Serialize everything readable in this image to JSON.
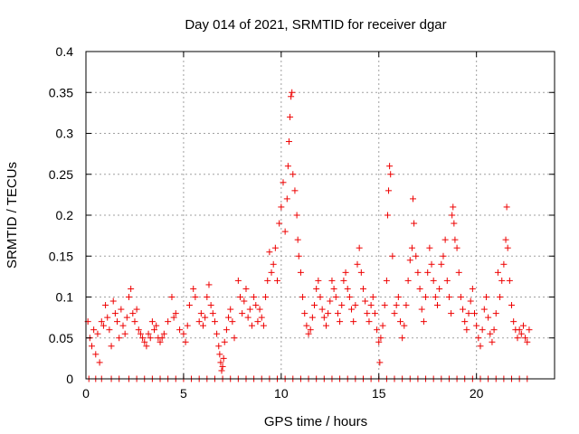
{
  "chart_data": {
    "type": "scatter",
    "title": "Day 014 of 2021, SRMTID for receiver dgar",
    "xlabel": "GPS time / hours",
    "ylabel": "SRMTID / TECUs",
    "xlim": [
      0,
      24
    ],
    "ylim": [
      0,
      0.4
    ],
    "x_ticks": [
      0,
      5,
      10,
      15,
      20
    ],
    "x_tick_labels": [
      "0",
      "5",
      "10",
      "15",
      "20"
    ],
    "y_ticks": [
      0,
      0.05,
      0.1,
      0.15,
      0.2,
      0.25,
      0.3,
      0.35,
      0.4
    ],
    "y_tick_labels": [
      "0",
      "0.05",
      "0.1",
      "0.15",
      "0.2",
      "0.25",
      "0.3",
      "0.35",
      "0.4"
    ],
    "grid": true,
    "marker": "+",
    "color": "#ee0000",
    "series": [
      {
        "name": "SRMTID",
        "points": [
          [
            0.1,
            0.07
          ],
          [
            0.2,
            0.05
          ],
          [
            0.3,
            0.04
          ],
          [
            0.4,
            0.06
          ],
          [
            0.5,
            0.03
          ],
          [
            0.6,
            0.055
          ],
          [
            0.7,
            0.02
          ],
          [
            0.8,
            0.07
          ],
          [
            0.9,
            0.065
          ],
          [
            1.0,
            0.09
          ],
          [
            1.1,
            0.075
          ],
          [
            1.2,
            0.06
          ],
          [
            1.3,
            0.04
          ],
          [
            1.4,
            0.095
          ],
          [
            1.5,
            0.08
          ],
          [
            1.6,
            0.07
          ],
          [
            1.7,
            0.05
          ],
          [
            1.8,
            0.085
          ],
          [
            1.9,
            0.065
          ],
          [
            2.0,
            0.055
          ],
          [
            2.1,
            0.075
          ],
          [
            2.2,
            0.1
          ],
          [
            2.3,
            0.11
          ],
          [
            2.4,
            0.08
          ],
          [
            2.5,
            0.07
          ],
          [
            2.6,
            0.085
          ],
          [
            2.7,
            0.06
          ],
          [
            2.8,
            0.055
          ],
          [
            2.9,
            0.05
          ],
          [
            3.0,
            0.045
          ],
          [
            3.1,
            0.04
          ],
          [
            3.2,
            0.055
          ],
          [
            3.3,
            0.05
          ],
          [
            3.4,
            0.07
          ],
          [
            3.5,
            0.06
          ],
          [
            3.6,
            0.065
          ],
          [
            3.7,
            0.05
          ],
          [
            3.8,
            0.045
          ],
          [
            3.9,
            0.05
          ],
          [
            4.0,
            0.055
          ],
          [
            4.2,
            0.07
          ],
          [
            4.4,
            0.1
          ],
          [
            4.5,
            0.075
          ],
          [
            4.6,
            0.08
          ],
          [
            4.8,
            0.06
          ],
          [
            5.0,
            0.055
          ],
          [
            5.1,
            0.045
          ],
          [
            5.2,
            0.065
          ],
          [
            5.3,
            0.09
          ],
          [
            5.5,
            0.11
          ],
          [
            5.6,
            0.1
          ],
          [
            5.8,
            0.07
          ],
          [
            5.9,
            0.08
          ],
          [
            6.0,
            0.065
          ],
          [
            6.1,
            0.075
          ],
          [
            6.2,
            0.1
          ],
          [
            6.3,
            0.115
          ],
          [
            6.4,
            0.09
          ],
          [
            6.5,
            0.08
          ],
          [
            6.6,
            0.07
          ],
          [
            6.7,
            0.055
          ],
          [
            6.8,
            0.04
          ],
          [
            6.85,
            0.03
          ],
          [
            6.9,
            0.02
          ],
          [
            6.95,
            0.01
          ],
          [
            7.0,
            0.015
          ],
          [
            7.05,
            0.025
          ],
          [
            7.1,
            0.045
          ],
          [
            7.2,
            0.06
          ],
          [
            7.3,
            0.075
          ],
          [
            7.4,
            0.085
          ],
          [
            7.5,
            0.07
          ],
          [
            7.6,
            0.05
          ],
          [
            7.8,
            0.12
          ],
          [
            7.9,
            0.1
          ],
          [
            8.0,
            0.08
          ],
          [
            8.1,
            0.095
          ],
          [
            8.2,
            0.11
          ],
          [
            8.3,
            0.075
          ],
          [
            8.4,
            0.085
          ],
          [
            8.5,
            0.065
          ],
          [
            8.6,
            0.1
          ],
          [
            8.7,
            0.09
          ],
          [
            8.8,
            0.07
          ],
          [
            8.9,
            0.085
          ],
          [
            9.0,
            0.075
          ],
          [
            9.1,
            0.065
          ],
          [
            9.2,
            0.1
          ],
          [
            9.3,
            0.12
          ],
          [
            9.4,
            0.155
          ],
          [
            9.5,
            0.13
          ],
          [
            9.6,
            0.14
          ],
          [
            9.7,
            0.16
          ],
          [
            9.8,
            0.12
          ],
          [
            9.9,
            0.19
          ],
          [
            10.0,
            0.21
          ],
          [
            10.1,
            0.24
          ],
          [
            10.2,
            0.18
          ],
          [
            10.3,
            0.22
          ],
          [
            10.35,
            0.26
          ],
          [
            10.4,
            0.29
          ],
          [
            10.45,
            0.32
          ],
          [
            10.5,
            0.345
          ],
          [
            10.55,
            0.35
          ],
          [
            10.6,
            0.25
          ],
          [
            10.7,
            0.23
          ],
          [
            10.8,
            0.2
          ],
          [
            10.85,
            0.17
          ],
          [
            10.9,
            0.15
          ],
          [
            11.0,
            0.13
          ],
          [
            11.1,
            0.1
          ],
          [
            11.2,
            0.08
          ],
          [
            11.3,
            0.065
          ],
          [
            11.4,
            0.055
          ],
          [
            11.5,
            0.06
          ],
          [
            11.6,
            0.075
          ],
          [
            11.7,
            0.09
          ],
          [
            11.8,
            0.11
          ],
          [
            11.9,
            0.12
          ],
          [
            12.0,
            0.1
          ],
          [
            12.1,
            0.085
          ],
          [
            12.2,
            0.075
          ],
          [
            12.3,
            0.065
          ],
          [
            12.4,
            0.08
          ],
          [
            12.5,
            0.095
          ],
          [
            12.6,
            0.12
          ],
          [
            12.7,
            0.11
          ],
          [
            12.8,
            0.1
          ],
          [
            12.9,
            0.08
          ],
          [
            13.0,
            0.07
          ],
          [
            13.1,
            0.09
          ],
          [
            13.2,
            0.12
          ],
          [
            13.3,
            0.13
          ],
          [
            13.4,
            0.11
          ],
          [
            13.5,
            0.1
          ],
          [
            13.6,
            0.085
          ],
          [
            13.7,
            0.07
          ],
          [
            13.8,
            0.09
          ],
          [
            13.9,
            0.14
          ],
          [
            14.0,
            0.16
          ],
          [
            14.1,
            0.13
          ],
          [
            14.2,
            0.11
          ],
          [
            14.3,
            0.095
          ],
          [
            14.4,
            0.08
          ],
          [
            14.5,
            0.07
          ],
          [
            14.6,
            0.09
          ],
          [
            14.7,
            0.1
          ],
          [
            14.8,
            0.08
          ],
          [
            14.9,
            0.06
          ],
          [
            15.0,
            0.045
          ],
          [
            15.05,
            0.02
          ],
          [
            15.1,
            0.05
          ],
          [
            15.2,
            0.065
          ],
          [
            15.3,
            0.09
          ],
          [
            15.4,
            0.12
          ],
          [
            15.45,
            0.2
          ],
          [
            15.5,
            0.23
          ],
          [
            15.55,
            0.26
          ],
          [
            15.6,
            0.25
          ],
          [
            15.7,
            0.15
          ],
          [
            15.8,
            0.08
          ],
          [
            15.9,
            0.09
          ],
          [
            16.0,
            0.1
          ],
          [
            16.1,
            0.07
          ],
          [
            16.2,
            0.05
          ],
          [
            16.3,
            0.065
          ],
          [
            16.4,
            0.09
          ],
          [
            16.5,
            0.12
          ],
          [
            16.6,
            0.145
          ],
          [
            16.7,
            0.16
          ],
          [
            16.75,
            0.22
          ],
          [
            16.8,
            0.19
          ],
          [
            16.9,
            0.15
          ],
          [
            17.0,
            0.13
          ],
          [
            17.1,
            0.11
          ],
          [
            17.2,
            0.085
          ],
          [
            17.3,
            0.07
          ],
          [
            17.4,
            0.1
          ],
          [
            17.5,
            0.13
          ],
          [
            17.6,
            0.16
          ],
          [
            17.7,
            0.14
          ],
          [
            17.8,
            0.12
          ],
          [
            17.9,
            0.1
          ],
          [
            18.0,
            0.09
          ],
          [
            18.1,
            0.11
          ],
          [
            18.2,
            0.14
          ],
          [
            18.3,
            0.15
          ],
          [
            18.4,
            0.17
          ],
          [
            18.5,
            0.12
          ],
          [
            18.6,
            0.1
          ],
          [
            18.7,
            0.08
          ],
          [
            18.75,
            0.2
          ],
          [
            18.8,
            0.21
          ],
          [
            18.85,
            0.19
          ],
          [
            18.9,
            0.17
          ],
          [
            19.0,
            0.16
          ],
          [
            19.1,
            0.13
          ],
          [
            19.2,
            0.1
          ],
          [
            19.3,
            0.085
          ],
          [
            19.4,
            0.07
          ],
          [
            19.5,
            0.06
          ],
          [
            19.6,
            0.08
          ],
          [
            19.7,
            0.095
          ],
          [
            19.8,
            0.11
          ],
          [
            19.9,
            0.08
          ],
          [
            20.0,
            0.065
          ],
          [
            20.1,
            0.05
          ],
          [
            20.2,
            0.04
          ],
          [
            20.3,
            0.06
          ],
          [
            20.4,
            0.085
          ],
          [
            20.5,
            0.1
          ],
          [
            20.6,
            0.075
          ],
          [
            20.7,
            0.055
          ],
          [
            20.8,
            0.045
          ],
          [
            20.9,
            0.06
          ],
          [
            21.0,
            0.08
          ],
          [
            21.1,
            0.13
          ],
          [
            21.2,
            0.1
          ],
          [
            21.3,
            0.12
          ],
          [
            21.4,
            0.14
          ],
          [
            21.5,
            0.17
          ],
          [
            21.55,
            0.21
          ],
          [
            21.6,
            0.16
          ],
          [
            21.7,
            0.12
          ],
          [
            21.8,
            0.09
          ],
          [
            21.9,
            0.07
          ],
          [
            22.0,
            0.06
          ],
          [
            22.1,
            0.05
          ],
          [
            22.2,
            0.06
          ],
          [
            22.3,
            0.055
          ],
          [
            22.4,
            0.065
          ],
          [
            22.5,
            0.05
          ],
          [
            22.6,
            0.045
          ],
          [
            22.7,
            0.06
          ],
          [
            0.15,
            0
          ],
          [
            0.5,
            0
          ],
          [
            0.8,
            0
          ],
          [
            1.3,
            0
          ],
          [
            1.7,
            0
          ],
          [
            2.2,
            0
          ],
          [
            2.6,
            0
          ],
          [
            3.0,
            0
          ],
          [
            3.4,
            0
          ],
          [
            3.8,
            0
          ],
          [
            4.2,
            0
          ],
          [
            4.6,
            0
          ],
          [
            5.0,
            0
          ],
          [
            5.4,
            0
          ],
          [
            5.8,
            0
          ],
          [
            6.2,
            0
          ],
          [
            6.6,
            0
          ],
          [
            7.0,
            0
          ],
          [
            7.4,
            0
          ],
          [
            7.8,
            0
          ],
          [
            8.2,
            0
          ],
          [
            8.6,
            0
          ],
          [
            9.0,
            0
          ],
          [
            9.4,
            0
          ],
          [
            9.8,
            0
          ],
          [
            10.2,
            0
          ],
          [
            10.6,
            0
          ],
          [
            11.0,
            0
          ],
          [
            11.4,
            0
          ],
          [
            11.8,
            0
          ],
          [
            12.2,
            0
          ],
          [
            12.6,
            0
          ],
          [
            13.0,
            0
          ],
          [
            13.4,
            0
          ],
          [
            13.8,
            0
          ],
          [
            14.2,
            0
          ],
          [
            14.6,
            0
          ],
          [
            15.0,
            0
          ],
          [
            15.4,
            0
          ],
          [
            15.8,
            0
          ],
          [
            16.2,
            0
          ],
          [
            16.6,
            0
          ],
          [
            17.0,
            0
          ],
          [
            17.4,
            0
          ],
          [
            17.8,
            0
          ],
          [
            18.2,
            0
          ],
          [
            18.6,
            0
          ],
          [
            19.0,
            0
          ],
          [
            19.4,
            0
          ],
          [
            19.8,
            0
          ],
          [
            20.2,
            0
          ],
          [
            20.6,
            0
          ],
          [
            21.0,
            0
          ],
          [
            21.4,
            0
          ],
          [
            21.8,
            0
          ],
          [
            22.2,
            0
          ],
          [
            22.6,
            0
          ]
        ]
      }
    ]
  }
}
